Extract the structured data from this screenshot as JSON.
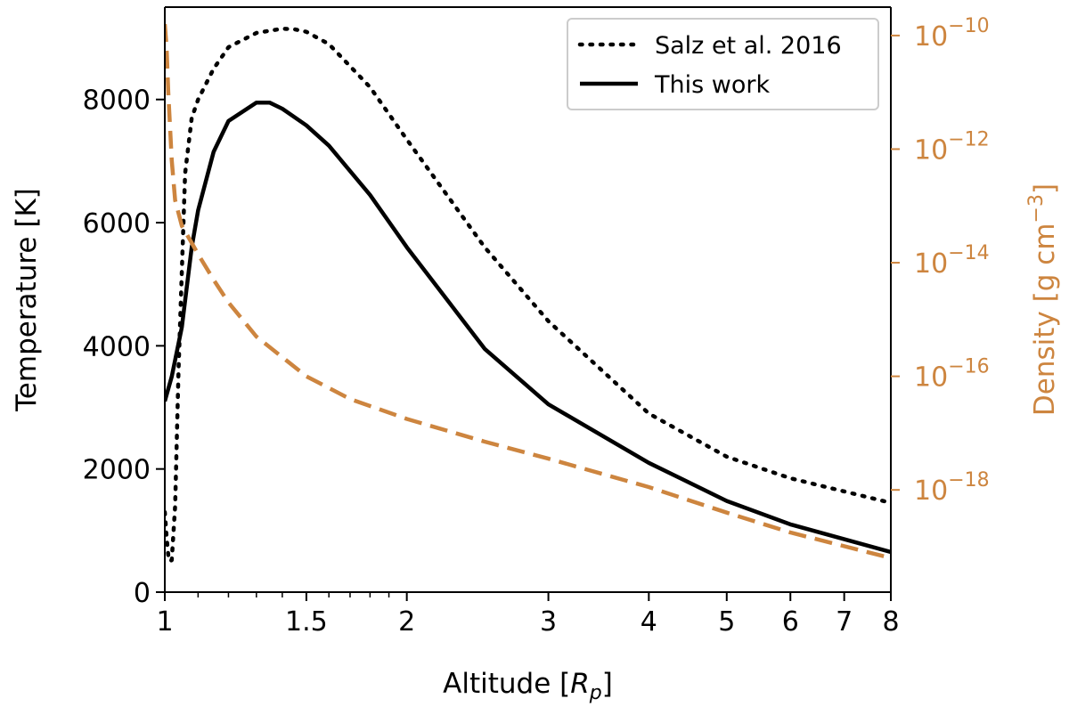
{
  "chart_data": {
    "type": "line",
    "xlabel": "Altitude [R_p]",
    "xlabel_main": "Altitude [",
    "xlabel_symbol": "R",
    "xlabel_sub": "p",
    "xlabel_close": "]",
    "xscale": "log",
    "xlim": [
      1,
      8
    ],
    "x_ticks": [
      {
        "value": 1,
        "label": "1"
      },
      {
        "value": 1.5,
        "label": "1.5"
      },
      {
        "value": 2,
        "label": "2"
      },
      {
        "value": 3,
        "label": "3"
      },
      {
        "value": 4,
        "label": "4"
      },
      {
        "value": 5,
        "label": "5"
      },
      {
        "value": 6,
        "label": "6"
      },
      {
        "value": 7,
        "label": "7"
      },
      {
        "value": 8,
        "label": "8"
      }
    ],
    "x_minor_ticks": [
      1.1,
      1.2,
      1.3,
      1.4,
      1.6,
      1.7,
      1.8,
      1.9
    ],
    "ylabel": "Temperature [K]",
    "ylim": [
      0,
      9500
    ],
    "y_ticks": [
      {
        "value": 0,
        "label": "0"
      },
      {
        "value": 2000,
        "label": "2000"
      },
      {
        "value": 4000,
        "label": "4000"
      },
      {
        "value": 6000,
        "label": "6000"
      },
      {
        "value": 8000,
        "label": "8000"
      }
    ],
    "y2label": "Density [g cm^-3]",
    "y2label_main": "Density [g cm",
    "y2label_sup": "−3",
    "y2label_close": "]",
    "y2scale": "log",
    "y2lim_exp": [
      -19.8,
      -9.5
    ],
    "y2_ticks": [
      {
        "exp": -10,
        "base": "10",
        "sup": "−10"
      },
      {
        "exp": -12,
        "base": "10",
        "sup": "−12"
      },
      {
        "exp": -14,
        "base": "10",
        "sup": "−14"
      },
      {
        "exp": -16,
        "base": "10",
        "sup": "−16"
      },
      {
        "exp": -18,
        "base": "10",
        "sup": "−18"
      }
    ],
    "colors": {
      "axis": "#000000",
      "density": "#cd853f",
      "temperature": "#000000"
    },
    "legend": {
      "position": "top-right",
      "entries": [
        {
          "label": "Salz et al. 2016",
          "style": "dotted"
        },
        {
          "label": "This work",
          "style": "solid"
        }
      ]
    },
    "series": [
      {
        "name": "Salz et al. 2016",
        "axis": "left",
        "style": "dotted",
        "x": [
          1.0,
          1.005,
          1.01,
          1.015,
          1.02,
          1.03,
          1.04,
          1.06,
          1.08,
          1.1,
          1.15,
          1.2,
          1.3,
          1.4,
          1.45,
          1.5,
          1.6,
          1.8,
          2.0,
          2.5,
          3.0,
          4.0,
          5.0,
          6.0,
          8.0
        ],
        "values": [
          1300,
          900,
          600,
          500,
          520,
          1400,
          3600,
          6800,
          7700,
          8000,
          8500,
          8850,
          9080,
          9150,
          9140,
          9100,
          8900,
          8200,
          7350,
          5600,
          4400,
          2900,
          2200,
          1850,
          1450
        ]
      },
      {
        "name": "This work",
        "axis": "left",
        "style": "solid",
        "x": [
          1.0,
          1.02,
          1.05,
          1.08,
          1.1,
          1.15,
          1.2,
          1.3,
          1.35,
          1.4,
          1.5,
          1.6,
          1.8,
          2.0,
          2.5,
          3.0,
          4.0,
          5.0,
          6.0,
          8.0
        ],
        "values": [
          3100,
          3500,
          4300,
          5600,
          6200,
          7150,
          7650,
          7950,
          7950,
          7850,
          7580,
          7250,
          6450,
          5600,
          3950,
          3050,
          2100,
          1480,
          1100,
          650
        ]
      },
      {
        "name": "Density",
        "axis": "right",
        "style": "dashed",
        "x": [
          1.0,
          1.005,
          1.01,
          1.02,
          1.03,
          1.05,
          1.08,
          1.1,
          1.15,
          1.2,
          1.3,
          1.5,
          1.7,
          2.0,
          2.5,
          3.0,
          4.0,
          5.0,
          6.0,
          8.0
        ],
        "values_exp": [
          -9.8,
          -10.2,
          -11.0,
          -12.2,
          -12.9,
          -13.35,
          -13.65,
          -13.85,
          -14.3,
          -14.7,
          -15.3,
          -16.0,
          -16.4,
          -16.75,
          -17.15,
          -17.45,
          -17.95,
          -18.4,
          -18.75,
          -19.2
        ]
      }
    ]
  }
}
